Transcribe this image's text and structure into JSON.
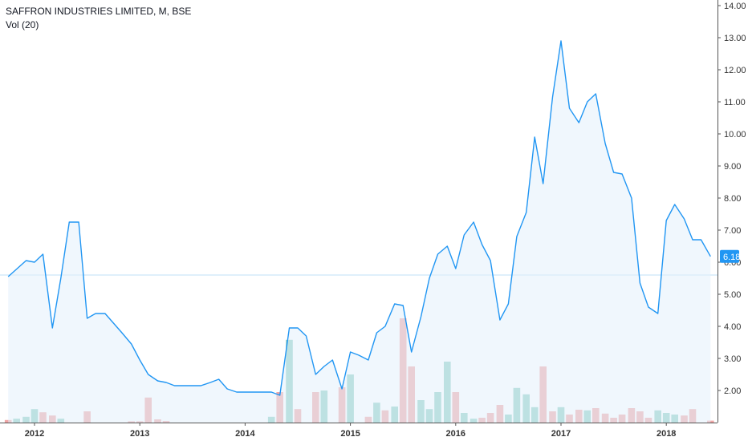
{
  "legend": {
    "title": "SAFFRON INDUSTRIES LIMITED, M, BSE",
    "indicator": "Vol (20)"
  },
  "colors": {
    "price_line": "#2196f3",
    "price_fill": "#e3f0fc",
    "volume_up": "#8fcfc4",
    "volume_down": "#f0a6a6",
    "ma_line": "#bfe0f7",
    "last_price_bg": "#2196f3",
    "axis": "#555555"
  },
  "chart_data": {
    "type": "line",
    "title": "SAFFRON INDUSTRIES LIMITED, M, BSE",
    "ylim": [
      1,
      14
    ],
    "y_ticks": [
      "2.00",
      "3.00",
      "4.00",
      "5.00",
      "6.00",
      "7.00",
      "8.00",
      "9.00",
      "10.00",
      "11.00",
      "12.00",
      "13.00",
      "14.00"
    ],
    "x_ticks": [
      "2012",
      "2013",
      "2014",
      "2015",
      "2016",
      "2017",
      "2018"
    ],
    "last_price": "6.18",
    "volume_ma_level": 5.6,
    "series": [
      {
        "name": "",
        "x": [
          2011.75,
          2011.92,
          2012.0,
          2012.08,
          2012.17,
          2012.25,
          2012.33,
          2012.42,
          2012.5,
          2012.58,
          2012.67,
          2012.75,
          2012.83,
          2012.92,
          2013.0,
          2013.08,
          2013.17,
          2013.25,
          2013.33,
          2013.42,
          2013.5,
          2013.58,
          2013.67,
          2013.75,
          2013.83,
          2013.92,
          2014.0,
          2014.08,
          2014.17,
          2014.25,
          2014.33,
          2014.42,
          2014.5,
          2014.58,
          2014.67,
          2014.75,
          2014.83,
          2014.92,
          2015.0,
          2015.08,
          2015.17,
          2015.25,
          2015.33,
          2015.42,
          2015.5,
          2015.58,
          2015.67,
          2015.75,
          2015.83,
          2015.92,
          2016.0,
          2016.08,
          2016.17,
          2016.25,
          2016.33,
          2016.42,
          2016.5,
          2016.58,
          2016.67,
          2016.75,
          2016.83,
          2016.92,
          2017.0,
          2017.08,
          2017.17,
          2017.25,
          2017.33,
          2017.42,
          2017.5,
          2017.58,
          2017.67,
          2017.75,
          2017.83,
          2017.92,
          2018.0,
          2018.08,
          2018.17,
          2018.25,
          2018.33,
          2018.42
        ],
        "y": [
          5.55,
          6.05,
          6.0,
          6.25,
          3.95,
          5.5,
          7.25,
          7.25,
          4.25,
          4.4,
          4.4,
          4.1,
          3.8,
          3.45,
          2.95,
          2.5,
          2.3,
          2.25,
          2.15,
          2.15,
          2.15,
          2.15,
          2.25,
          2.35,
          2.05,
          1.95,
          1.95,
          1.95,
          1.95,
          1.95,
          1.85,
          3.95,
          3.95,
          3.7,
          2.5,
          2.75,
          2.95,
          2.05,
          3.2,
          3.1,
          2.95,
          3.8,
          4.0,
          4.7,
          4.65,
          3.2,
          4.3,
          5.5,
          6.25,
          6.5,
          5.8,
          6.85,
          7.25,
          6.55,
          6.05,
          4.2,
          4.7,
          6.8,
          7.55,
          9.9,
          8.45,
          11.15,
          12.9,
          10.8,
          10.35,
          11.0,
          11.25,
          9.7,
          8.8,
          8.75,
          8.0,
          5.35,
          4.6,
          4.4,
          7.3,
          7.8,
          7.35,
          6.7,
          6.7,
          6.18
        ]
      }
    ],
    "volume_series": {
      "name": "Vol (20)",
      "x": [
        2011.75,
        2011.83,
        2011.92,
        2012.0,
        2012.08,
        2012.17,
        2012.25,
        2012.5,
        2012.92,
        2013.0,
        2013.08,
        2013.17,
        2013.25,
        2014.25,
        2014.33,
        2014.42,
        2014.5,
        2014.67,
        2014.75,
        2014.92,
        2015.0,
        2015.17,
        2015.25,
        2015.33,
        2015.42,
        2015.5,
        2015.58,
        2015.67,
        2015.75,
        2015.83,
        2015.92,
        2016.0,
        2016.08,
        2016.17,
        2016.25,
        2016.33,
        2016.42,
        2016.5,
        2016.58,
        2016.67,
        2016.75,
        2016.83,
        2016.92,
        2017.0,
        2017.08,
        2017.17,
        2017.25,
        2017.33,
        2017.42,
        2017.5,
        2017.58,
        2017.67,
        2017.75,
        2017.83,
        2017.92,
        2018.0,
        2018.08,
        2018.17,
        2018.25,
        2018.42
      ],
      "y": [
        1.08,
        1.12,
        1.18,
        1.42,
        1.32,
        1.22,
        1.12,
        1.35,
        1.04,
        1.04,
        1.78,
        1.1,
        1.05,
        1.18,
        1.95,
        3.58,
        1.42,
        1.95,
        2.0,
        2.1,
        2.5,
        1.18,
        1.62,
        1.38,
        1.5,
        4.25,
        2.75,
        1.7,
        1.42,
        1.95,
        2.9,
        1.95,
        1.3,
        1.12,
        1.15,
        1.3,
        1.55,
        1.25,
        2.08,
        1.88,
        1.48,
        2.75,
        1.35,
        1.48,
        1.25,
        1.4,
        1.38,
        1.45,
        1.28,
        1.15,
        1.25,
        1.45,
        1.35,
        1.15,
        1.38,
        1.3,
        1.25,
        1.22,
        1.42,
        1.06
      ],
      "direction": [
        "down",
        "up",
        "up",
        "up",
        "down",
        "down",
        "up",
        "down",
        "down",
        "down",
        "down",
        "down",
        "down",
        "up",
        "down",
        "up",
        "down",
        "down",
        "up",
        "down",
        "up",
        "down",
        "up",
        "down",
        "up",
        "down",
        "down",
        "up",
        "up",
        "up",
        "up",
        "down",
        "up",
        "up",
        "down",
        "down",
        "down",
        "up",
        "up",
        "up",
        "up",
        "down",
        "down",
        "up",
        "down",
        "down",
        "up",
        "down",
        "down",
        "down",
        "down",
        "down",
        "down",
        "down",
        "up",
        "up",
        "up",
        "down",
        "down",
        "down"
      ]
    }
  }
}
